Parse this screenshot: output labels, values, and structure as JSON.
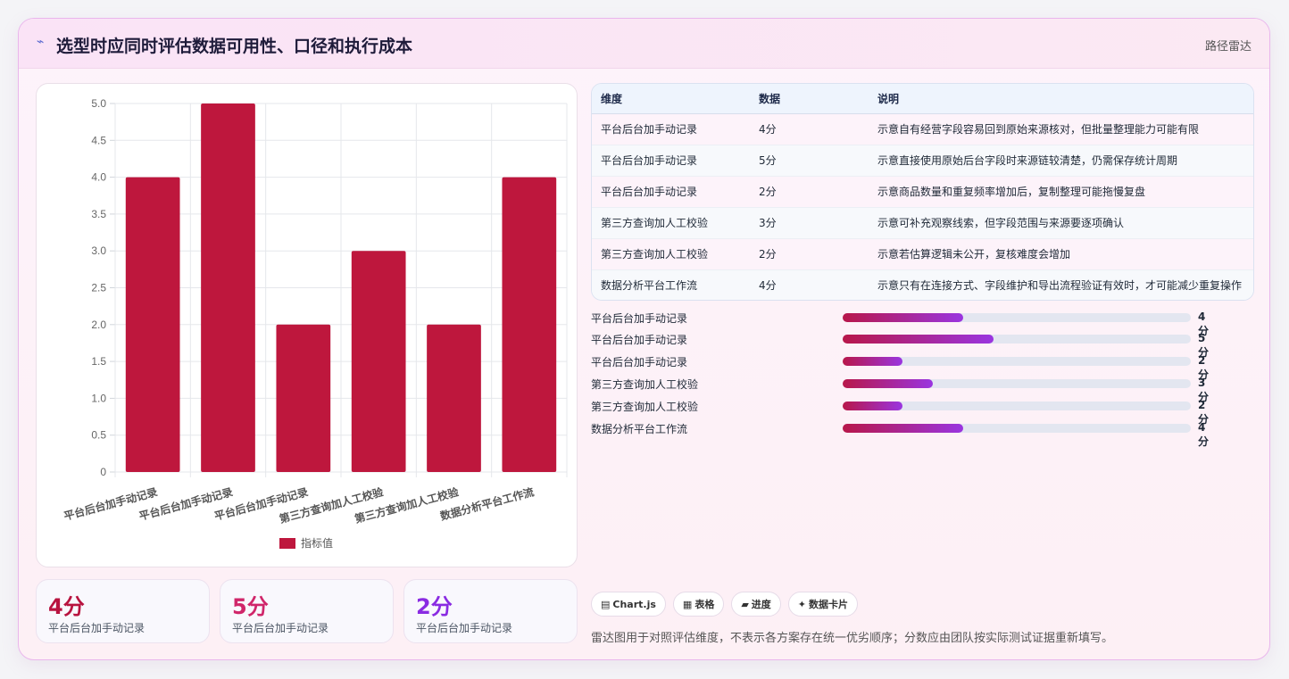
{
  "header": {
    "icon": "sparkle-icon",
    "title": "选型时应同时评估数据可用性、口径和执行成本",
    "tag": "路径雷达"
  },
  "chart_data": {
    "type": "bar",
    "categories": [
      "平台后台加手动记录",
      "平台后台加手动记录",
      "平台后台加手动记录",
      "第三方查询加人工校验",
      "第三方查询加人工校验",
      "数据分析平台工作流"
    ],
    "series": [
      {
        "name": "指标值",
        "values": [
          4,
          5,
          2,
          3,
          2,
          4
        ],
        "color": "#be173d"
      }
    ],
    "ylim": [
      0,
      5
    ],
    "yticks": [
      "0",
      "0.5",
      "1.0",
      "1.5",
      "2.0",
      "2.5",
      "3.0",
      "3.5",
      "4.0",
      "4.5",
      "5.0"
    ],
    "grid": true,
    "legend": "bottom"
  },
  "kpis": [
    {
      "value": "4分",
      "label": "平台后台加手动记录",
      "color": "#b8133f"
    },
    {
      "value": "5分",
      "label": "平台后台加手动记录",
      "color": "#d0266a"
    },
    {
      "value": "2分",
      "label": "平台后台加手动记录",
      "color": "#8a2be2"
    }
  ],
  "table": {
    "headers": [
      "维度",
      "数据",
      "说明"
    ],
    "rows": [
      [
        "平台后台加手动记录",
        "4分",
        "示意自有经营字段容易回到原始来源核对，但批量整理能力可能有限"
      ],
      [
        "平台后台加手动记录",
        "5分",
        "示意直接使用原始后台字段时来源链较清楚，仍需保存统计周期"
      ],
      [
        "平台后台加手动记录",
        "2分",
        "示意商品数量和重复频率增加后，复制整理可能拖慢复盘"
      ],
      [
        "第三方查询加人工校验",
        "3分",
        "示意可补充观察线索，但字段范围与来源要逐项确认"
      ],
      [
        "第三方查询加人工校验",
        "2分",
        "示意若估算逻辑未公开，复核难度会增加"
      ],
      [
        "数据分析平台工作流",
        "4分",
        "示意只有在连接方式、字段维护和导出流程验证有效时，才可能减少重复操作"
      ]
    ]
  },
  "progress": [
    {
      "label": "平台后台加手动记录",
      "value": "4分",
      "fraction": 0.346
    },
    {
      "label": "平台后台加手动记录",
      "value": "5分",
      "fraction": 0.433
    },
    {
      "label": "平台后台加手动记录",
      "value": "2分",
      "fraction": 0.173
    },
    {
      "label": "第三方查询加人工校验",
      "value": "3分",
      "fraction": 0.26
    },
    {
      "label": "第三方查询加人工校验",
      "value": "2分",
      "fraction": 0.173
    },
    {
      "label": "数据分析平台工作流",
      "value": "4分",
      "fraction": 0.346
    }
  ],
  "chips": [
    {
      "icon": "chart-icon",
      "glyph": "▤",
      "label": "Chart.js"
    },
    {
      "icon": "table-icon",
      "glyph": "▦",
      "label": "表格"
    },
    {
      "icon": "progress-icon",
      "glyph": "▰",
      "label": "进度"
    },
    {
      "icon": "card-icon",
      "glyph": "✦",
      "label": "数据卡片"
    }
  ],
  "note": "雷达图用于对照评估维度，不表示各方案存在统一优劣顺序；分数应由团队按实际测试证据重新填写。"
}
